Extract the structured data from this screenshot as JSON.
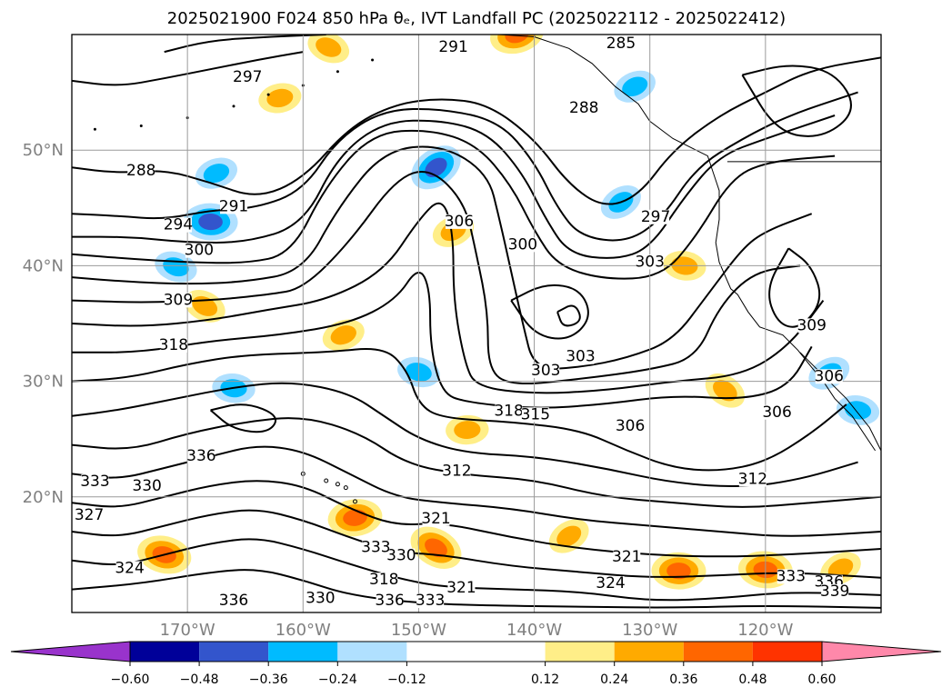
{
  "chart_data": {
    "type": "heatmap",
    "title": "2025021900 F024 850 hPa θₑ, IVT Landfall PC (2025022112 - 2025022412)",
    "map_extent": {
      "lon": [
        -180,
        -110
      ],
      "lat": [
        10,
        60
      ]
    },
    "x_ticks": [
      {
        "lon": -170,
        "label": "170°W"
      },
      {
        "lon": -160,
        "label": "160°W"
      },
      {
        "lon": -150,
        "label": "150°W"
      },
      {
        "lon": -140,
        "label": "140°W"
      },
      {
        "lon": -130,
        "label": "130°W"
      },
      {
        "lon": -120,
        "label": "120°W"
      }
    ],
    "y_ticks": [
      {
        "lat": 20,
        "label": "20°N"
      },
      {
        "lat": 30,
        "label": "30°N"
      },
      {
        "lat": 40,
        "label": "40°N"
      },
      {
        "lat": 50,
        "label": "50°N"
      }
    ],
    "grid": true,
    "colorbar": {
      "orientation": "horizontal",
      "extend": "both",
      "bounds": [
        -0.72,
        -0.6,
        -0.48,
        -0.36,
        -0.24,
        -0.12,
        0.12,
        0.24,
        0.36,
        0.48,
        0.6,
        0.72
      ],
      "colors": [
        "#9933cc",
        "#000099",
        "#3355cc",
        "#00bbff",
        "#b0e0ff",
        "#ffffff",
        "#ffee88",
        "#ffaa00",
        "#ff6600",
        "#ff3300",
        "#b22222",
        "#ff88aa"
      ],
      "tick_values": [
        -0.6,
        -0.48,
        -0.36,
        -0.24,
        -0.12,
        0.12,
        0.24,
        0.36,
        0.48,
        0.6
      ],
      "tick_labels": [
        "−0.60",
        "−0.48",
        "−0.36",
        "−0.24",
        "−0.12",
        "0.12",
        "0.24",
        "0.36",
        "0.48",
        "0.60"
      ]
    },
    "contour_labels": [
      {
        "text": "285",
        "lon": -132.5,
        "lat": 58.9
      },
      {
        "text": "291",
        "lon": -147.0,
        "lat": 58.6
      },
      {
        "text": "288",
        "lon": -135.7,
        "lat": 53.3
      },
      {
        "text": "297",
        "lon": -164.8,
        "lat": 56.0
      },
      {
        "text": "288",
        "lon": -174.0,
        "lat": 47.9
      },
      {
        "text": "291",
        "lon": -166.0,
        "lat": 44.8
      },
      {
        "text": "294",
        "lon": -170.8,
        "lat": 43.2
      },
      {
        "text": "300",
        "lon": -169.0,
        "lat": 41.0
      },
      {
        "text": "306",
        "lon": -146.5,
        "lat": 43.5
      },
      {
        "text": "300",
        "lon": -141.0,
        "lat": 41.5
      },
      {
        "text": "297",
        "lon": -129.5,
        "lat": 43.9
      },
      {
        "text": "303",
        "lon": -130.0,
        "lat": 40.0
      },
      {
        "text": "309",
        "lon": -170.8,
        "lat": 36.7
      },
      {
        "text": "318",
        "lon": -171.2,
        "lat": 32.8
      },
      {
        "text": "303",
        "lon": -136.0,
        "lat": 31.8
      },
      {
        "text": "303",
        "lon": -139.0,
        "lat": 30.6
      },
      {
        "text": "318",
        "lon": -142.2,
        "lat": 27.1
      },
      {
        "text": "315",
        "lon": -139.9,
        "lat": 26.8
      },
      {
        "text": "306",
        "lon": -131.7,
        "lat": 25.8
      },
      {
        "text": "306",
        "lon": -119.0,
        "lat": 27.0
      },
      {
        "text": "306",
        "lon": -114.5,
        "lat": 30.1
      },
      {
        "text": "309",
        "lon": -116.0,
        "lat": 34.5
      },
      {
        "text": "312",
        "lon": -146.7,
        "lat": 21.9
      },
      {
        "text": "312",
        "lon": -121.1,
        "lat": 21.2
      },
      {
        "text": "336",
        "lon": -168.8,
        "lat": 23.2
      },
      {
        "text": "333",
        "lon": -178.0,
        "lat": 21.0
      },
      {
        "text": "330",
        "lon": -173.5,
        "lat": 20.6
      },
      {
        "text": "327",
        "lon": -178.5,
        "lat": 18.1
      },
      {
        "text": "321",
        "lon": -148.5,
        "lat": 17.8
      },
      {
        "text": "330",
        "lon": -151.5,
        "lat": 14.6
      },
      {
        "text": "333",
        "lon": -153.7,
        "lat": 15.3
      },
      {
        "text": "318",
        "lon": -153.0,
        "lat": 12.5
      },
      {
        "text": "321",
        "lon": -146.3,
        "lat": 11.8
      },
      {
        "text": "324",
        "lon": -133.4,
        "lat": 12.2
      },
      {
        "text": "321",
        "lon": -132.0,
        "lat": 14.5
      },
      {
        "text": "333",
        "lon": -117.8,
        "lat": 12.8
      },
      {
        "text": "336",
        "lon": -114.5,
        "lat": 12.3
      },
      {
        "text": "339",
        "lon": -114.0,
        "lat": 11.5
      },
      {
        "text": "333",
        "lon": -149.0,
        "lat": 10.7
      },
      {
        "text": "336",
        "lon": -152.5,
        "lat": 10.7
      },
      {
        "text": "330",
        "lon": -158.5,
        "lat": 10.9
      },
      {
        "text": "336",
        "lon": -166.0,
        "lat": 10.7
      },
      {
        "text": "324",
        "lon": -175.0,
        "lat": 13.5
      }
    ],
    "shaded_regions": [
      {
        "lon": -148.5,
        "lat": 48.5,
        "value": -0.42
      },
      {
        "lon": -168.0,
        "lat": 43.8,
        "value": -0.42
      },
      {
        "lon": -132.5,
        "lat": 45.5,
        "value": -0.3
      },
      {
        "lon": -166.0,
        "lat": 29.4,
        "value": -0.3
      },
      {
        "lon": -114.5,
        "lat": 30.7,
        "value": -0.3
      },
      {
        "lon": -112.0,
        "lat": 27.5,
        "value": -0.3
      },
      {
        "lon": -131.3,
        "lat": 55.5,
        "value": -0.24
      },
      {
        "lon": -150.0,
        "lat": 30.8,
        "value": -0.24
      },
      {
        "lon": -167.5,
        "lat": 48.0,
        "value": -0.3
      },
      {
        "lon": -171.0,
        "lat": 39.9,
        "value": -0.24
      },
      {
        "lon": -141.5,
        "lat": 60.0,
        "value": 0.38
      },
      {
        "lon": -157.8,
        "lat": 58.9,
        "value": 0.35
      },
      {
        "lon": -162.0,
        "lat": 54.5,
        "value": 0.3
      },
      {
        "lon": -168.5,
        "lat": 36.5,
        "value": 0.3
      },
      {
        "lon": -155.5,
        "lat": 18.2,
        "value": 0.38
      },
      {
        "lon": -148.5,
        "lat": 15.6,
        "value": 0.4
      },
      {
        "lon": -145.8,
        "lat": 25.8,
        "value": 0.3
      },
      {
        "lon": -123.5,
        "lat": 29.2,
        "value": 0.3
      },
      {
        "lon": -127.5,
        "lat": 13.6,
        "value": 0.36
      },
      {
        "lon": -137.0,
        "lat": 16.6,
        "value": 0.32
      },
      {
        "lon": -120.0,
        "lat": 13.7,
        "value": 0.38
      },
      {
        "lon": -113.5,
        "lat": 13.8,
        "value": 0.33
      },
      {
        "lon": -127.0,
        "lat": 40.0,
        "value": 0.26
      },
      {
        "lon": -147.0,
        "lat": 43.0,
        "value": 0.26
      },
      {
        "lon": -172.0,
        "lat": 15.0,
        "value": 0.36
      },
      {
        "lon": -156.5,
        "lat": 34.0,
        "value": 0.28
      }
    ]
  }
}
